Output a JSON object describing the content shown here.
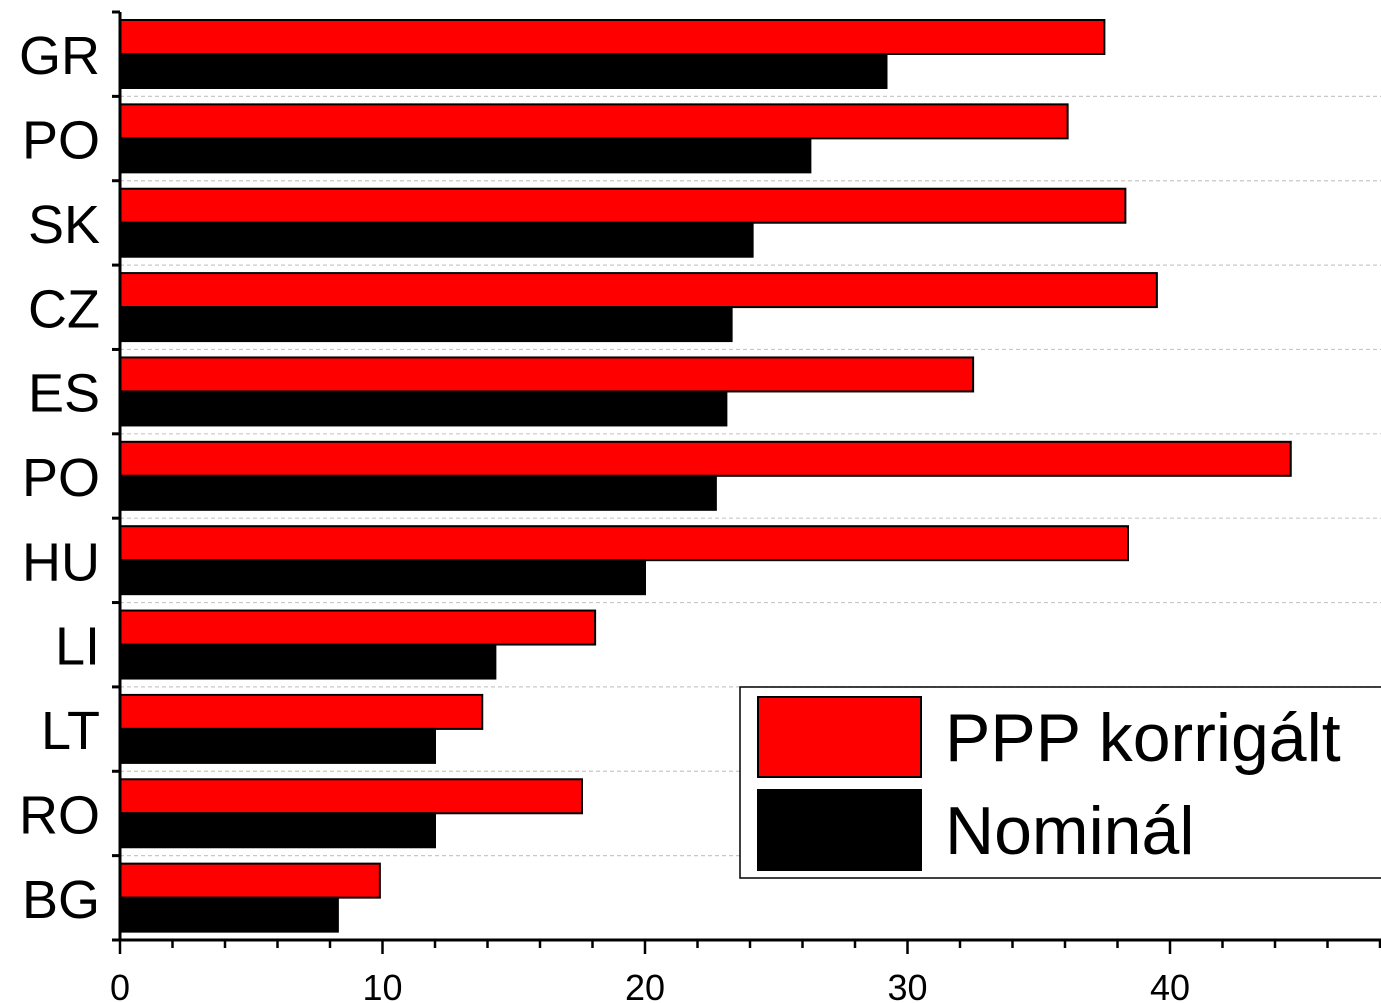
{
  "chart_data": {
    "type": "bar",
    "orientation": "horizontal",
    "categories": [
      "GR",
      "PO",
      "SK",
      "CZ",
      "ES",
      "PO",
      "HU",
      "LI",
      "LT",
      "RO",
      "BG"
    ],
    "series": [
      {
        "name": "PPP korrigált",
        "color": "#ff0000",
        "values": [
          37.5,
          36.1,
          38.3,
          39.5,
          32.5,
          44.6,
          38.4,
          18.1,
          13.8,
          17.6,
          9.9
        ]
      },
      {
        "name": "Nominál",
        "color": "#000000",
        "values": [
          29.2,
          26.3,
          24.1,
          23.3,
          23.1,
          22.7,
          20.0,
          14.3,
          12.0,
          12.0,
          8.3
        ]
      }
    ],
    "xlim": [
      0,
      48
    ],
    "xticks": [
      "0",
      "10",
      "20",
      "30",
      "40"
    ],
    "title": "",
    "xlabel": "",
    "ylabel": "",
    "grid": "horizontal-dashed",
    "legend": "bottom-right"
  }
}
